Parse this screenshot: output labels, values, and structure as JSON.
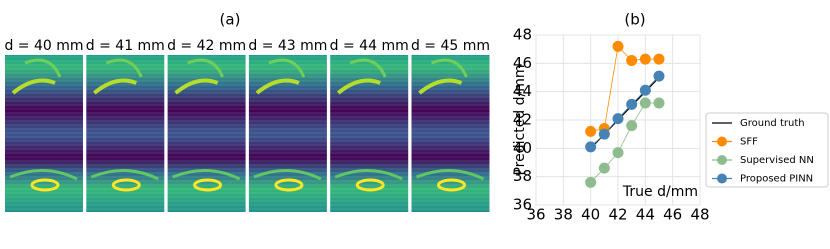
{
  "panel_a": {
    "label": "(a)",
    "titles": [
      "d = 40 mm",
      "d = 41 mm",
      "d = 42 mm",
      "d = 43 mm",
      "d = 44 mm",
      "d = 45 mm"
    ]
  },
  "chart_data": {
    "type": "line",
    "title": "(b)",
    "x_label": "True d/mm",
    "y_label": "Predicted d/mm",
    "x": [
      40,
      41,
      42,
      43,
      44,
      45
    ],
    "series": [
      {
        "name": "Ground truth",
        "color": "#000000",
        "marker": false,
        "values": [
          40,
          41,
          42,
          43,
          44,
          45
        ]
      },
      {
        "name": "SFF",
        "color": "#ff8c00",
        "marker": true,
        "values": [
          41.2,
          41.4,
          47.2,
          46.2,
          46.3,
          46.3
        ]
      },
      {
        "name": "Supervised NN",
        "color": "#8fbc8f",
        "marker": true,
        "values": [
          37.6,
          38.6,
          39.7,
          41.6,
          43.2,
          43.2
        ]
      },
      {
        "name": "Proposed PINN",
        "color": "#4682b4",
        "marker": true,
        "values": [
          40.1,
          41.0,
          42.1,
          43.1,
          44.1,
          45.1
        ]
      }
    ],
    "xlim": [
      36,
      48
    ],
    "ylim": [
      36,
      48
    ],
    "xticks": [
      36,
      38,
      40,
      42,
      44,
      46,
      48
    ],
    "yticks": [
      36,
      38,
      40,
      42,
      44,
      46,
      48
    ],
    "grid": true,
    "legend": "right"
  }
}
